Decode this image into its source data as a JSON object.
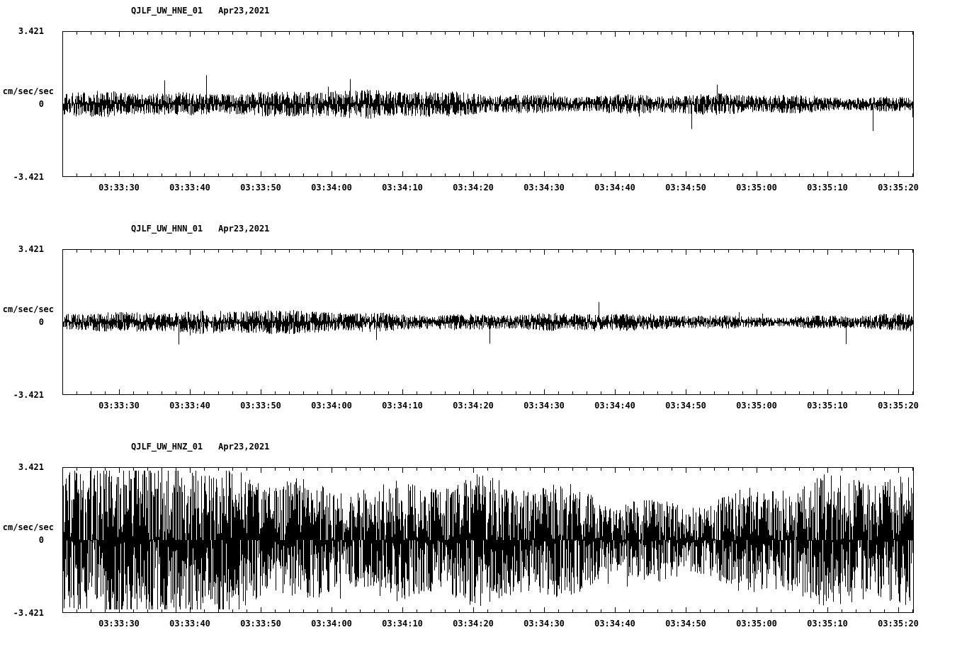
{
  "page": {
    "background": "#ffffff",
    "description": "Three-channel seismogram strip plot, station QJLF (UW network), Apr 23 2021"
  },
  "chart_data": {
    "type": "line",
    "subtype": "seismogram-waveform",
    "line_color": "#000000",
    "grid": false,
    "x_axis": {
      "start_seconds_after_03_33": 22,
      "end_seconds_after_03_33": 142.2,
      "major_tick_interval_sec": 10,
      "minor_tick_interval_sec": 2,
      "tick_times_sec": [
        30,
        40,
        50,
        60,
        70,
        80,
        90,
        100,
        110,
        120,
        130,
        140
      ],
      "tick_labels": [
        "03:33:30",
        "03:33:40",
        "03:33:50",
        "03:34:00",
        "03:34:10",
        "03:34:20",
        "03:34:30",
        "03:34:40",
        "03:34:50",
        "03:35:00",
        "03:35:10",
        "03:35:20"
      ]
    },
    "panels": [
      {
        "id": "HNE",
        "title": "QJLF_UW_HNE_01",
        "date": "Apr23,2021",
        "ylabel": "cm/sec/sec",
        "ylim": [
          -3.421,
          3.421
        ],
        "ytick_labels": [
          "3.421",
          "0",
          "-3.421"
        ],
        "ytick_values": [
          3.421,
          0,
          -3.421
        ],
        "noise_typical_peak": 0.5,
        "noise_max_peak": 1.6,
        "spike_probability": 0.004,
        "seed": 101
      },
      {
        "id": "HNN",
        "title": "QJLF_UW_HNN_01",
        "date": "Apr23,2021",
        "ylabel": "cm/sec/sec",
        "ylim": [
          -3.421,
          3.421
        ],
        "ytick_labels": [
          "3.421",
          "0",
          "-3.421"
        ],
        "ytick_values": [
          3.421,
          0,
          -3.421
        ],
        "noise_typical_peak": 0.42,
        "noise_max_peak": 1.3,
        "spike_probability": 0.003,
        "seed": 202
      },
      {
        "id": "HNZ",
        "title": "QJLF_UW_HNZ_01",
        "date": "Apr23,2021",
        "ylabel": "cm/sec/sec",
        "ylim": [
          -3.421,
          3.421
        ],
        "ytick_labels": [
          "3.421",
          "0",
          "-3.421"
        ],
        "ytick_values": [
          3.421,
          0,
          -3.421
        ],
        "noise_typical_peak": 2.9,
        "noise_max_peak": 3.4,
        "spike_probability": 0.006,
        "seed": 303
      }
    ]
  }
}
